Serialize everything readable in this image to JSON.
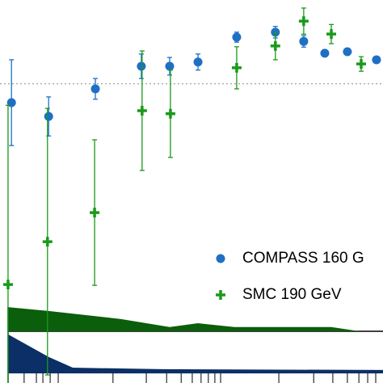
{
  "chart_data": {
    "type": "scatter",
    "xlim": [
      0,
      100
    ],
    "ylim": [
      0,
      100
    ],
    "xticks": [
      6.3,
      9.5,
      11.2,
      13.1,
      15.2,
      29.5,
      38.2,
      43.5,
      47.3,
      50.2,
      52.5,
      54.4,
      56.1,
      57.6,
      72.8,
      81.9,
      86.9,
      90.7,
      93.7,
      96.0,
      98.1
    ],
    "reference_line": 78.1,
    "series": [
      {
        "name": "COMPASS 160 G",
        "color": "#1f6fc5",
        "marker": "circle",
        "x": [
          3.0,
          12.7,
          24.9,
          36.9,
          44.3,
          51.7,
          61.8,
          71.9,
          79.3,
          84.8,
          90.7,
          98.3
        ],
        "values": [
          73.2,
          69.6,
          76.8,
          82.7,
          82.7,
          83.8,
          90.3,
          91.6,
          89.2,
          86.1,
          86.5,
          84.4
        ],
        "errors": [
          11.2,
          5.1,
          2.7,
          3.2,
          2.3,
          2.1,
          1.3,
          1.5,
          1.5,
          0,
          0,
          0
        ]
      },
      {
        "name": "SMC 190 GeV",
        "color": "#1a9a1a",
        "marker": "plus",
        "x": [
          2.1,
          12.4,
          24.7,
          37.1,
          44.5,
          61.8,
          71.9,
          79.3,
          86.5,
          94.3
        ],
        "values": [
          25.7,
          36.9,
          44.5,
          71.1,
          70.3,
          82.3,
          88.0,
          94.5,
          91.1,
          83.3
        ],
        "errors": [
          46.8,
          34.8,
          19.0,
          15.6,
          11.4,
          5.5,
          3.6,
          3.4,
          2.5,
          1.9
        ]
      }
    ],
    "areas": [
      {
        "color": "#0b5e0b",
        "base": 13.5,
        "x": [
          2.1,
          12.7,
          31.6,
          44.3,
          51.7,
          61.2,
          86.5,
          93.9
        ],
        "values": [
          19.8,
          18.8,
          16.7,
          14.6,
          15.6,
          14.6,
          14.6,
          13.5
        ]
      },
      {
        "color": "#0b2f66",
        "base": 2.5,
        "x": [
          2.1,
          12.7,
          19.0,
          42.2,
          100
        ],
        "values": [
          12.7,
          6.8,
          4.0,
          3.6,
          3.4
        ]
      }
    ]
  }
}
